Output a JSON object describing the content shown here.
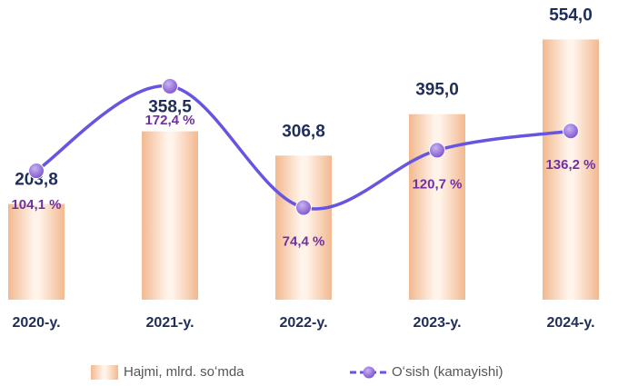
{
  "chart_data": {
    "type": "bar",
    "categories": [
      "2020-y.",
      "2021-y.",
      "2022-y.",
      "2023-y.",
      "2024-y."
    ],
    "series": [
      {
        "name": "Hajmi, mlrd. soʻmda",
        "color": "#f4c4a0",
        "values": [
          203.8,
          358.5,
          306.8,
          395.0,
          554.0
        ],
        "value_labels": [
          "203,8",
          "358,5",
          "306,8",
          "395,0",
          "554,0"
        ]
      },
      {
        "name": "Oʻsish (kamayishi)",
        "type": "line",
        "axis": "y2",
        "color": "#6655e0",
        "values": [
          104.1,
          172.4,
          74.4,
          120.7,
          136.2
        ],
        "value_labels": [
          "104,1 %",
          "172,4 %",
          "74,4 %",
          "120,7 %",
          "136,2 %"
        ]
      }
    ],
    "ylim": [
      0,
      580
    ],
    "y2lim": [
      0,
      220
    ]
  }
}
